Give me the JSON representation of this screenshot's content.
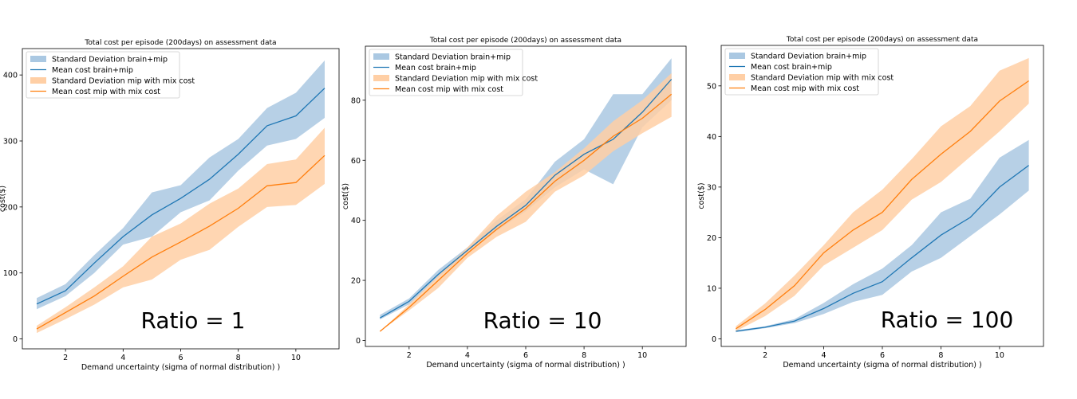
{
  "colors": {
    "blue": "#1f77b4",
    "blue_fill": "#aac8e2",
    "orange": "#ff7f0e",
    "orange_fill": "#ffcfa5"
  },
  "chart_data": [
    {
      "type": "line",
      "title": "Total cost per episode (200days) on assessment data",
      "xlabel": "Demand uncertainty (sigma of normal distribution) )",
      "ylabel": "cost($)",
      "xlim": [
        0.5,
        11.5
      ],
      "ylim": [
        -15,
        440
      ],
      "xticks": [
        2,
        4,
        6,
        8,
        10
      ],
      "yticks": [
        0,
        100,
        200,
        300,
        400
      ],
      "legend": "top-left",
      "annotation": "Ratio = 1",
      "legend_entries": [
        "Standard Deviation brain+mip",
        "Mean cost brain+mip",
        "Standard Deviation mip with mix cost",
        "Mean cost mip with mix cost"
      ],
      "x": [
        1,
        2,
        3,
        4,
        5,
        6,
        7,
        8,
        9,
        10,
        11
      ],
      "series": [
        {
          "name": "Mean cost brain+mip",
          "color": "blue",
          "values": [
            53,
            73,
            115,
            155,
            188,
            213,
            242,
            280,
            323,
            338,
            380
          ],
          "lower": [
            45,
            65,
            100,
            143,
            155,
            192,
            210,
            255,
            293,
            303,
            335
          ],
          "upper": [
            62,
            83,
            127,
            168,
            222,
            233,
            275,
            303,
            350,
            373,
            422
          ]
        },
        {
          "name": "Mean cost mip with mix cost",
          "color": "orange",
          "values": [
            15,
            40,
            65,
            95,
            124,
            147,
            171,
            198,
            232,
            237,
            278
          ],
          "lower": [
            9,
            30,
            52,
            78,
            90,
            120,
            135,
            170,
            200,
            203,
            235
          ],
          "upper": [
            20,
            48,
            78,
            110,
            155,
            175,
            205,
            228,
            265,
            272,
            320
          ]
        }
      ]
    },
    {
      "type": "line",
      "title": "Total cost per episode (200days) on assessment data",
      "xlabel": "Demand uncertainty (sigma of normal distribution) )",
      "ylabel": "cost($)",
      "xlim": [
        0.5,
        11.5
      ],
      "ylim": [
        -2,
        98
      ],
      "xticks": [
        2,
        4,
        6,
        8,
        10
      ],
      "yticks": [
        0,
        20,
        40,
        60,
        80
      ],
      "legend": "top-left",
      "annotation": "Ratio = 10",
      "legend_entries": [
        "Standard Deviation brain+mip",
        "Mean cost brain+mip",
        "Standard Deviation mip with mix cost",
        "Mean cost mip with mix cost"
      ],
      "x": [
        1,
        2,
        3,
        4,
        5,
        6,
        7,
        8,
        9,
        10,
        11
      ],
      "series": [
        {
          "name": "Mean cost brain+mip",
          "color": "blue",
          "values": [
            7.5,
            13,
            22,
            30,
            38,
            45,
            55,
            62,
            67,
            76,
            87
          ],
          "lower": [
            7,
            12,
            21,
            29,
            36.5,
            43,
            51,
            57,
            52,
            71,
            80
          ],
          "upper": [
            8.5,
            14,
            23.5,
            31,
            40,
            47,
            59.5,
            67,
            82,
            82,
            94
          ]
        },
        {
          "name": "Mean cost mip with mix cost",
          "color": "orange",
          "values": [
            3,
            11,
            20,
            29,
            37,
            44,
            53,
            60,
            68,
            74,
            82
          ],
          "lower": [
            3,
            10,
            17.5,
            27.5,
            34.5,
            39.5,
            49.5,
            55,
            63,
            69,
            74.5
          ],
          "upper": [
            3,
            12,
            21.5,
            31,
            41.5,
            49.5,
            56,
            64,
            73,
            80,
            89
          ]
        }
      ]
    },
    {
      "type": "line",
      "title": "Total cost per episode (200days) on assessment data",
      "xlabel": "Demand uncertainty (sigma of normal distribution) )",
      "ylabel": "cost($)",
      "xlim": [
        0.5,
        11.5
      ],
      "ylim": [
        -1.5,
        58
      ],
      "xticks": [
        2,
        4,
        6,
        8,
        10
      ],
      "yticks": [
        0,
        10,
        20,
        30,
        40,
        50
      ],
      "legend": "top-left",
      "annotation": "Ratio = 100",
      "legend_entries": [
        "Standard Deviation brain+mip",
        "Mean cost brain+mip",
        "Standard Deviation mip with mix cost",
        "Mean cost mip with mix cost"
      ],
      "x": [
        1,
        2,
        3,
        4,
        5,
        6,
        7,
        8,
        9,
        10,
        11
      ],
      "series": [
        {
          "name": "Mean cost brain+mip",
          "color": "blue",
          "values": [
            1.5,
            2.3,
            3.5,
            6,
            9,
            11.3,
            16,
            20.5,
            24,
            30,
            34.3
          ],
          "lower": [
            1.3,
            2.1,
            3.1,
            4.9,
            7.3,
            8.7,
            13.3,
            16,
            20.3,
            24.6,
            29.3
          ],
          "upper": [
            1.7,
            2.5,
            3.9,
            7.1,
            10.8,
            13.9,
            18.5,
            25,
            27.7,
            35.8,
            39.3
          ]
        },
        {
          "name": "Mean cost mip with mix cost",
          "color": "orange",
          "values": [
            2,
            5.8,
            10.5,
            17,
            21.5,
            25,
            31.5,
            36.5,
            41,
            47,
            51
          ],
          "lower": [
            1.5,
            4.5,
            8.5,
            14.5,
            18,
            21.5,
            27.5,
            31,
            36,
            41,
            46.5
          ],
          "upper": [
            2.5,
            7,
            12.5,
            18.5,
            25,
            29.5,
            35.5,
            42,
            46,
            53,
            55.5
          ]
        }
      ]
    }
  ]
}
